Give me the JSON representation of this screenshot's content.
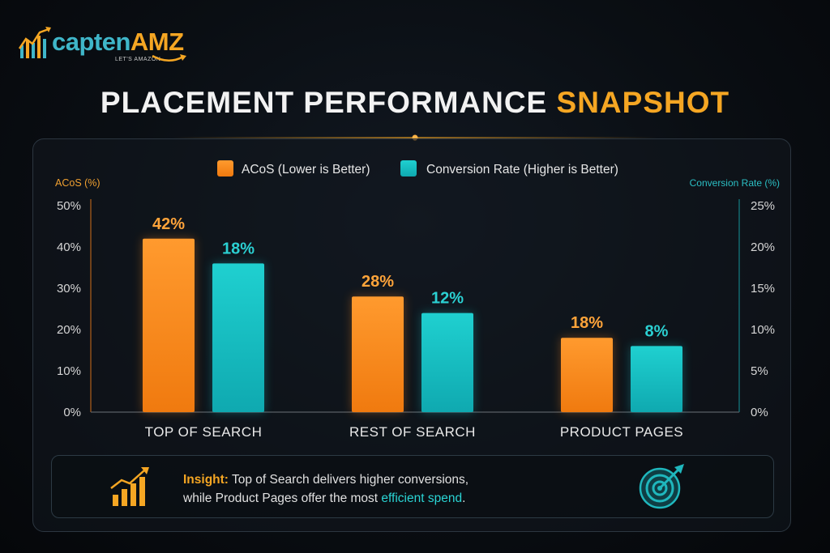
{
  "brand": {
    "name_part1": "capten",
    "name_part2": "AMZ",
    "tagline": "LET'S AMAZON"
  },
  "title": {
    "part1": "PLACEMENT PERFORMANCE",
    "part2": "SNAPSHOT"
  },
  "colors": {
    "acos": "#ff8a1c",
    "conversion": "#16c2c6",
    "accent": "#f5a623",
    "highlight": "#2ad4d4"
  },
  "chart_data": {
    "type": "bar",
    "categories": [
      "TOP OF SEARCH",
      "REST OF SEARCH",
      "PRODUCT PAGES"
    ],
    "series": [
      {
        "name": "ACoS (Lower is Better)",
        "axis": "left",
        "values": [
          42,
          28,
          18
        ],
        "labels": [
          "42%",
          "28%",
          "18%"
        ]
      },
      {
        "name": "Conversion Rate (Higher is Better)",
        "axis": "right",
        "values": [
          18,
          12,
          8
        ],
        "labels": [
          "18%",
          "12%",
          "8%"
        ]
      }
    ],
    "y_left": {
      "label": "ACoS (%)",
      "range": [
        0,
        50
      ],
      "ticks": [
        "0%",
        "10%",
        "20%",
        "30%",
        "40%",
        "50%"
      ]
    },
    "y_right": {
      "label": "Conversion Rate (%)",
      "range": [
        0,
        25
      ],
      "ticks": [
        "0%",
        "5%",
        "10%",
        "15%",
        "20%",
        "25%"
      ]
    },
    "legend_position": "top-center",
    "grid": false
  },
  "insight": {
    "label": "Insight:",
    "line1": "Top of Search delivers higher conversions,",
    "line2_before": "while Product Pages offer the most ",
    "line2_highlight": "efficient spend",
    "line2_after": "."
  }
}
